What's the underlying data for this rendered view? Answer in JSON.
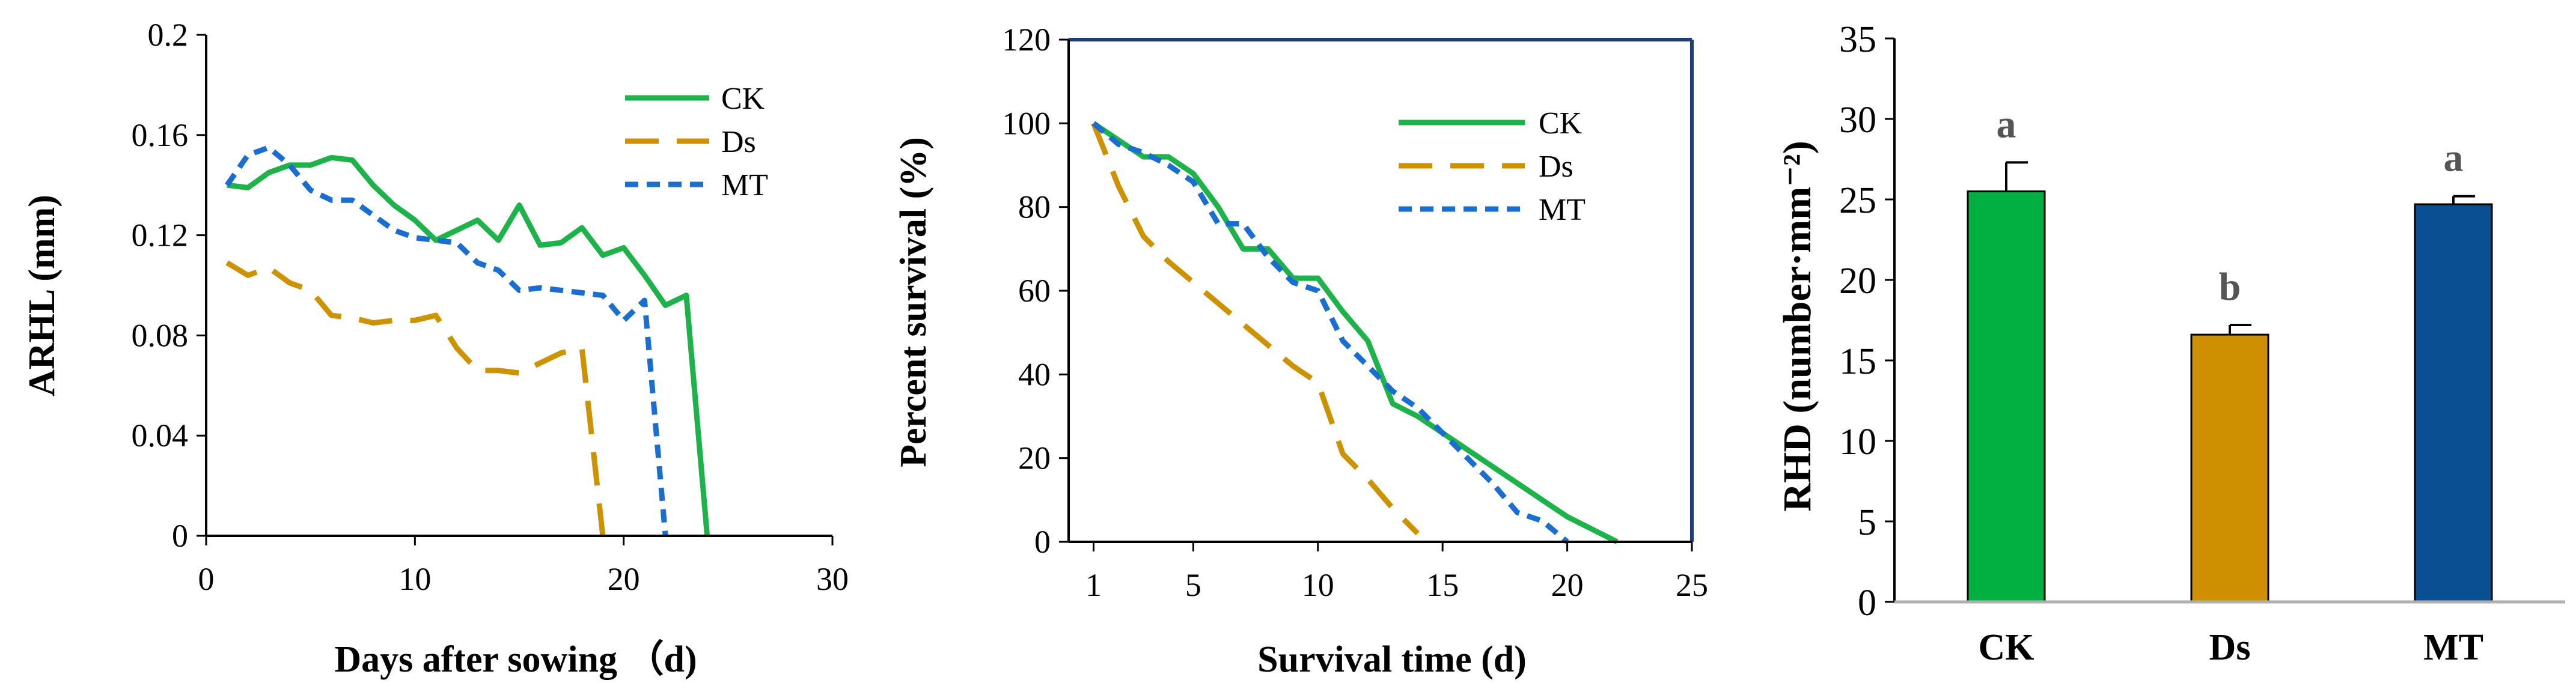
{
  "chart_data": [
    {
      "type": "line",
      "panel": "left",
      "xlabel": "Days after sowing （d)",
      "ylabel": "ARHL (mm)",
      "xlim": [
        0,
        30
      ],
      "ylim": [
        0,
        0.2
      ],
      "xticks": [
        0,
        10,
        20,
        30
      ],
      "yticks": [
        0,
        0.04,
        0.08,
        0.12,
        0.16,
        0.2
      ],
      "ytick_labels": [
        "0",
        "0.04",
        "0.08",
        "0.12",
        "0.16",
        "0.2"
      ],
      "legend": "top-right",
      "series": [
        {
          "name": "CK",
          "color": "#1db34a",
          "style": "solid",
          "x": [
            1,
            2,
            3,
            4,
            5,
            6,
            7,
            8,
            9,
            10,
            11,
            12,
            13,
            14,
            15,
            16,
            17,
            18,
            19,
            20,
            21,
            22,
            23,
            24
          ],
          "y": [
            0.14,
            0.139,
            0.145,
            0.148,
            0.148,
            0.151,
            0.15,
            0.14,
            0.132,
            0.126,
            0.118,
            0.122,
            0.126,
            0.118,
            0.132,
            0.116,
            0.117,
            0.123,
            0.112,
            0.115,
            0.104,
            0.092,
            0.096,
            0
          ]
        },
        {
          "name": "Ds",
          "color": "#cc9200",
          "style": "dashed",
          "x": [
            1,
            2,
            3,
            4,
            5,
            6,
            7,
            8,
            9,
            10,
            11,
            12,
            13,
            14,
            15,
            16,
            17,
            18,
            19
          ],
          "y": [
            0.109,
            0.104,
            0.107,
            0.101,
            0.098,
            0.088,
            0.087,
            0.085,
            0.086,
            0.086,
            0.088,
            0.075,
            0.066,
            0.066,
            0.065,
            0.069,
            0.073,
            0.075,
            0
          ]
        },
        {
          "name": "MT",
          "color": "#1a6ed0",
          "style": "dotted",
          "x": [
            1,
            2,
            3,
            4,
            5,
            6,
            7,
            8,
            9,
            10,
            11,
            12,
            13,
            14,
            15,
            16,
            17,
            18,
            19,
            20,
            21,
            22
          ],
          "y": [
            0.14,
            0.152,
            0.155,
            0.148,
            0.138,
            0.134,
            0.134,
            0.128,
            0.122,
            0.119,
            0.118,
            0.117,
            0.109,
            0.106,
            0.098,
            0.099,
            0.098,
            0.097,
            0.096,
            0.086,
            0.094,
            0
          ]
        }
      ]
    },
    {
      "type": "line",
      "panel": "middle",
      "xlabel": "Survival time (d)",
      "ylabel": "Percent survival (%)",
      "xlim": [
        0,
        25
      ],
      "ylim": [
        0,
        120
      ],
      "xticks": [
        1,
        5,
        10,
        15,
        20,
        25
      ],
      "yticks": [
        0,
        20,
        40,
        60,
        80,
        100,
        120
      ],
      "legend": "top-right",
      "series": [
        {
          "name": "CK",
          "color": "#1db34a",
          "style": "solid",
          "x": [
            1,
            2,
            3,
            4,
            5,
            6,
            7,
            8,
            9,
            10,
            11,
            12,
            13,
            14,
            15,
            16,
            17,
            18,
            19,
            20,
            21,
            22
          ],
          "y": [
            100,
            96,
            92,
            92,
            88,
            80,
            70,
            70,
            63,
            63,
            55,
            48,
            33,
            30,
            26,
            22,
            18,
            14,
            10,
            6,
            3,
            0
          ]
        },
        {
          "name": "Ds",
          "color": "#cc9200",
          "style": "dashed",
          "x": [
            1,
            2,
            3,
            4,
            5,
            6,
            7,
            8,
            9,
            10,
            11,
            12,
            13,
            14
          ],
          "y": [
            100,
            85,
            73,
            67,
            62,
            57,
            52,
            47,
            42,
            38,
            21,
            15,
            8,
            2
          ]
        },
        {
          "name": "MT",
          "color": "#1a6ed0",
          "style": "dotted",
          "x": [
            1,
            2,
            3,
            4,
            5,
            6,
            7,
            8,
            9,
            10,
            11,
            12,
            13,
            14,
            15,
            16,
            17,
            18,
            19,
            20
          ],
          "y": [
            100,
            95,
            93,
            90,
            86,
            76,
            76,
            68,
            62,
            60,
            48,
            42,
            36,
            32,
            26,
            20,
            14,
            7,
            5,
            0
          ]
        }
      ]
    },
    {
      "type": "bar",
      "panel": "right",
      "ylabel": "RHD (number·mm⁻²)",
      "ylim": [
        0,
        35
      ],
      "yticks": [
        0,
        5,
        10,
        15,
        20,
        25,
        30,
        35
      ],
      "categories": [
        "CK",
        "Ds",
        "MT"
      ],
      "values": [
        25.5,
        16.6,
        24.7
      ],
      "errors": [
        1.8,
        0.6,
        0.5
      ],
      "labels": [
        "a",
        "b",
        "a"
      ],
      "colors": [
        "#00b040",
        "#cc9000",
        "#0a4f94"
      ]
    }
  ]
}
